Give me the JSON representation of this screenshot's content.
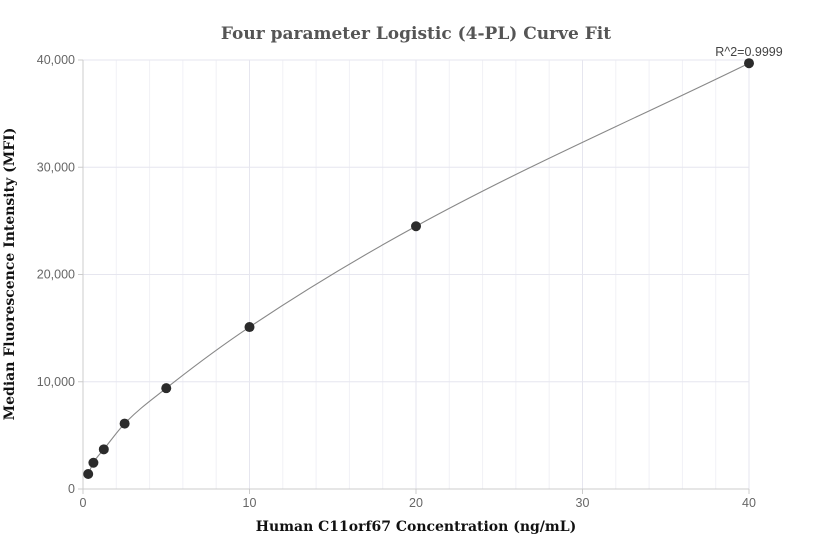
{
  "chart_data": {
    "type": "scatter",
    "title": "Four parameter Logistic (4-PL) Curve Fit",
    "xlabel": "Human C11orf67 Concentration (ng/mL)",
    "ylabel": "Median Fluorescence Intensity (MFI)",
    "xlim": [
      0,
      40
    ],
    "ylim": [
      0,
      40000
    ],
    "x_ticks": [
      0,
      10,
      20,
      30,
      40
    ],
    "x_tick_labels": [
      "0",
      "10",
      "20",
      "30",
      "40"
    ],
    "y_ticks": [
      0,
      10000,
      20000,
      30000,
      40000
    ],
    "y_tick_labels": [
      "0",
      "10,000",
      "20,000",
      "30,000",
      "40,000"
    ],
    "grid": true,
    "annotation": "R^2=0.9999",
    "series": [
      {
        "points": [
          {
            "x": 0.3125,
            "y": 1400
          },
          {
            "x": 0.625,
            "y": 2450
          },
          {
            "x": 1.25,
            "y": 3700
          },
          {
            "x": 2.5,
            "y": 6100
          },
          {
            "x": 5,
            "y": 9400
          },
          {
            "x": 10,
            "y": 15100
          },
          {
            "x": 20,
            "y": 24500
          },
          {
            "x": 40,
            "y": 39700
          }
        ]
      }
    ],
    "colors": {
      "point": "#2b2b2b",
      "curve": "#888888",
      "grid": "#e6e6ef",
      "axis": "#cccccc"
    }
  }
}
